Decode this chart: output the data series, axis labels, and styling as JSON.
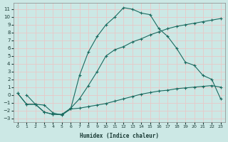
{
  "xlabel": "Humidex (Indice chaleur)",
  "bg_color": "#cce8e5",
  "grid_color": "#e8c8c8",
  "line_color": "#1a6b60",
  "xlim": [
    -0.5,
    23.5
  ],
  "ylim": [
    -3.5,
    11.8
  ],
  "xticks": [
    0,
    1,
    2,
    3,
    4,
    5,
    6,
    7,
    8,
    9,
    10,
    11,
    12,
    13,
    14,
    15,
    16,
    17,
    18,
    19,
    20,
    21,
    22,
    23
  ],
  "yticks": [
    -3,
    -2,
    -1,
    0,
    1,
    2,
    3,
    4,
    5,
    6,
    7,
    8,
    9,
    10,
    11
  ],
  "line_peak_x": [
    1,
    2,
    3,
    4,
    5,
    6,
    7,
    8,
    9,
    10,
    11,
    12,
    13,
    14,
    15,
    16,
    17,
    18,
    19,
    20,
    21,
    22,
    23
  ],
  "line_peak_y": [
    0.0,
    -1.2,
    -1.3,
    -2.3,
    -2.6,
    -1.8,
    2.5,
    5.5,
    7.5,
    9.0,
    10.0,
    11.2,
    11.0,
    10.5,
    10.3,
    8.5,
    7.5,
    6.0,
    4.2,
    3.8,
    2.5,
    2.0,
    -0.5
  ],
  "line_mid_x": [
    0,
    1,
    2,
    3,
    4,
    5,
    6,
    7,
    8,
    9,
    10,
    11,
    12,
    13,
    14,
    15,
    16,
    17,
    18,
    19,
    20,
    21,
    22,
    23
  ],
  "line_mid_y": [
    0.2,
    -1.2,
    -1.2,
    -2.2,
    -2.5,
    -2.5,
    -1.7,
    -0.5,
    1.2,
    3.0,
    5.0,
    5.8,
    6.2,
    6.8,
    7.2,
    7.7,
    8.1,
    8.5,
    8.8,
    9.0,
    9.2,
    9.4,
    9.6,
    9.8
  ],
  "line_flat_x": [
    0,
    1,
    2,
    3,
    4,
    5,
    6,
    7,
    8,
    9,
    10,
    11,
    12,
    13,
    14,
    15,
    16,
    17,
    18,
    19,
    20,
    21,
    22,
    23
  ],
  "line_flat_y": [
    0.2,
    -1.2,
    -1.2,
    -2.2,
    -2.5,
    -2.5,
    -1.8,
    -1.7,
    -1.5,
    -1.3,
    -1.1,
    -0.8,
    -0.5,
    -0.2,
    0.1,
    0.3,
    0.5,
    0.6,
    0.8,
    0.9,
    1.0,
    1.1,
    1.2,
    1.0
  ]
}
